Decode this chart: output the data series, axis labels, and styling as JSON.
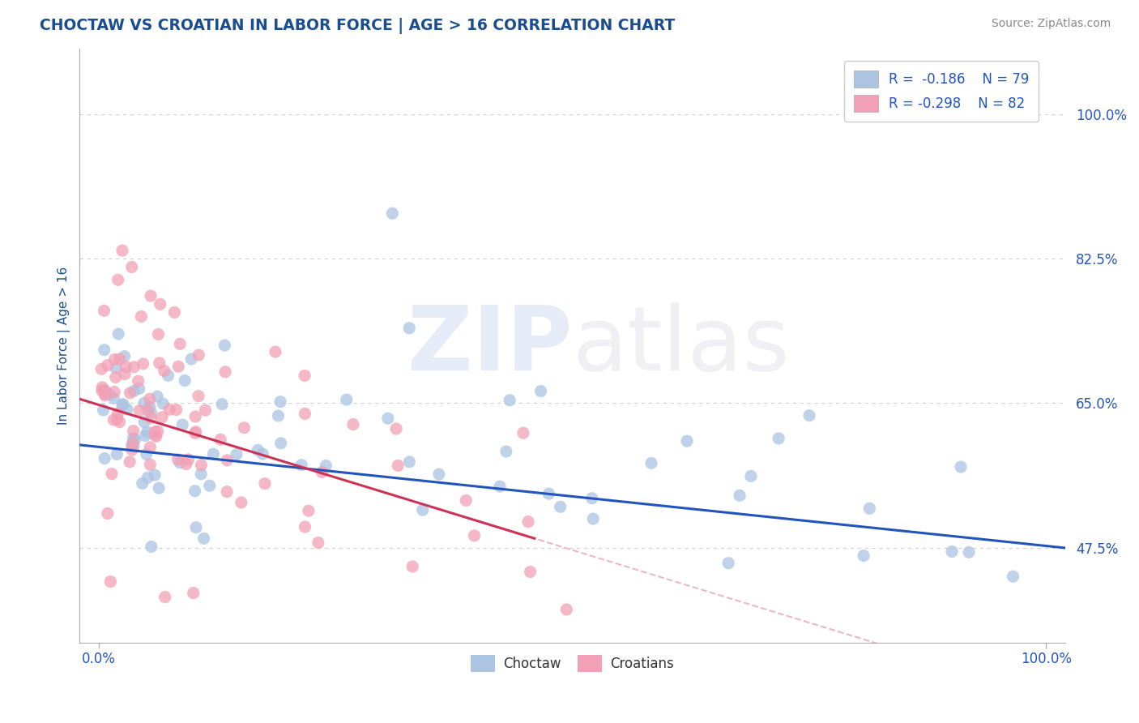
{
  "title": "CHOCTAW VS CROATIAN IN LABOR FORCE | AGE > 16 CORRELATION CHART",
  "source_text": "Source: ZipAtlas.com",
  "ylabel": "In Labor Force | Age > 16",
  "x_tick_labels": [
    "0.0%",
    "100.0%"
  ],
  "y_tick_labels": [
    "47.5%",
    "65.0%",
    "82.5%",
    "100.0%"
  ],
  "xlim": [
    -0.02,
    1.02
  ],
  "ylim": [
    0.36,
    1.08
  ],
  "y_ticks": [
    0.475,
    0.65,
    0.825,
    1.0
  ],
  "legend_r_choctaw": "R =  -0.186",
  "legend_n_choctaw": "N = 79",
  "legend_r_croatian": "R = -0.298",
  "legend_n_croatian": "N = 82",
  "choctaw_color": "#aac4e2",
  "croatian_color": "#f2a0b5",
  "choctaw_line_color": "#2255bb",
  "croatian_line_color": "#cc3355",
  "diagonal_color": "#e8b0c0",
  "title_color": "#1a4d8f",
  "axis_label_color": "#1a4d8f",
  "tick_color": "#2255bb",
  "background_color": "#ffffff",
  "grid_color": "#d0d0d0"
}
